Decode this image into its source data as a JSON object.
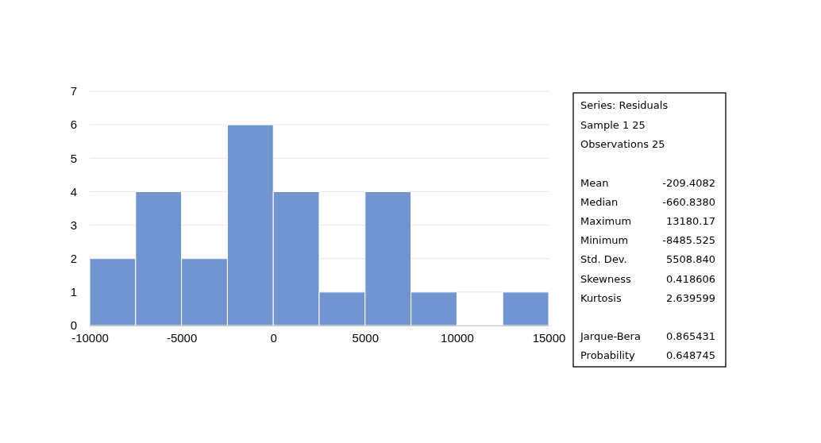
{
  "chart_data": {
    "type": "histogram",
    "bins": [
      -10000,
      -7500,
      -5000,
      -2500,
      0,
      2500,
      5000,
      7500,
      10000,
      12500,
      15000
    ],
    "values": [
      2,
      4,
      2,
      6,
      4,
      1,
      4,
      1,
      0,
      1
    ],
    "color": "#7295cf",
    "xlim": [
      -10000,
      15000
    ],
    "xticks": [
      -10000,
      -5000,
      0,
      5000,
      10000,
      15000
    ],
    "ylim": [
      0,
      7
    ],
    "yticks": [
      0,
      1,
      2,
      3,
      4,
      5,
      6,
      7
    ],
    "grid": "y",
    "annotations": [
      "Series: Residuals",
      "Sample 1 25",
      "Observations 25",
      "Mean",
      "-209.4082",
      "Median",
      "-660.8380",
      "Maximum",
      "13180.17",
      "Minimum",
      "-8485.525",
      "Std. Dev.",
      "5508.840",
      "Skewness",
      "0.418606",
      "Kurtosis",
      "2.639599",
      "Jarque-Bera",
      "0.865431",
      "Probability",
      "0.648745"
    ]
  }
}
